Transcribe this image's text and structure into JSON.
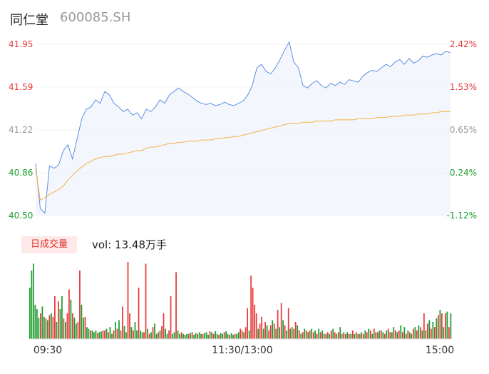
{
  "header": {
    "name": "同仁堂",
    "code": "600085.SH"
  },
  "volume_panel": {
    "tab_label": "日成交量",
    "vol_text": "vol: 13.48万手"
  },
  "colors": {
    "up": "#e8393a",
    "down": "#1a9e2c",
    "price_line": "#5b8ee0",
    "avg_line": "#f5b041",
    "neutral": "#999999"
  },
  "chart_data": [
    {
      "type": "line",
      "title": "",
      "y_left_ticks": [
        "41.95",
        "41.59",
        "41.22",
        "40.86",
        "40.50"
      ],
      "y_right_ticks": [
        "2.42%",
        "1.53%",
        "0.65%",
        "-0.24%",
        "-1.12%"
      ],
      "ylim": [
        40.5,
        41.95
      ],
      "x_tick_labels": [
        "09:30",
        "11:30/13:00",
        "15:00"
      ],
      "series": [
        {
          "values": [
            40.94,
            40.56,
            40.52,
            40.92,
            40.9,
            40.93,
            41.05,
            41.1,
            40.98,
            41.15,
            41.32,
            41.4,
            41.42,
            41.48,
            41.45,
            41.55,
            41.52,
            41.45,
            41.42,
            41.38,
            41.4,
            41.35,
            41.37,
            41.32,
            41.4,
            41.38,
            41.42,
            41.48,
            41.45,
            41.52,
            41.55,
            41.58,
            41.55,
            41.53,
            41.5,
            41.47,
            41.45,
            41.44,
            41.45,
            41.43,
            41.44,
            41.46,
            41.44,
            41.43,
            41.45,
            41.47,
            41.52,
            41.6,
            41.75,
            41.78,
            41.72,
            41.7,
            41.75,
            41.82,
            41.9,
            41.97,
            41.8,
            41.75,
            41.6,
            41.58,
            41.62,
            41.64,
            41.6,
            41.58,
            41.62,
            41.6,
            41.63,
            41.61,
            41.65,
            41.64,
            41.63,
            41.68,
            41.71,
            41.73,
            41.72,
            41.75,
            41.78,
            41.76,
            41.8,
            41.82,
            41.78,
            41.83,
            41.79,
            41.81,
            41.85,
            41.84,
            41.86,
            41.87,
            41.86,
            41.89,
            41.88
          ]
        },
        {
          "values": [
            40.9,
            40.63,
            40.65,
            40.68,
            40.7,
            40.72,
            40.75,
            40.8,
            40.84,
            40.88,
            40.91,
            40.94,
            40.96,
            40.98,
            40.99,
            41.0,
            41.0,
            41.01,
            41.02,
            41.02,
            41.03,
            41.04,
            41.05,
            41.05,
            41.07,
            41.08,
            41.08,
            41.09,
            41.1,
            41.11,
            41.11,
            41.12,
            41.12,
            41.13,
            41.13,
            41.13,
            41.14,
            41.14,
            41.14,
            41.15,
            41.15,
            41.16,
            41.16,
            41.17,
            41.17,
            41.18,
            41.19,
            41.2,
            41.21,
            41.22,
            41.23,
            41.24,
            41.25,
            41.26,
            41.27,
            41.28,
            41.28,
            41.28,
            41.29,
            41.29,
            41.29,
            41.3,
            41.3,
            41.3,
            41.3,
            41.31,
            41.31,
            41.31,
            41.31,
            41.31,
            41.32,
            41.32,
            41.32,
            41.32,
            41.33,
            41.33,
            41.33,
            41.34,
            41.34,
            41.34,
            41.35,
            41.35,
            41.35,
            41.36,
            41.36,
            41.36,
            41.37,
            41.37,
            41.38,
            41.38,
            41.38
          ]
        }
      ]
    },
    {
      "type": "bar",
      "title": "",
      "values": [
        60,
        80,
        88,
        40,
        35,
        25,
        30,
        38,
        26,
        24,
        22,
        28,
        30,
        26,
        50,
        20,
        44,
        35,
        50,
        24,
        20,
        30,
        58,
        46,
        30,
        25,
        18,
        20,
        80,
        40,
        25,
        26,
        14,
        12,
        10,
        10,
        8,
        10,
        7,
        8,
        9,
        10,
        10,
        12,
        8,
        14,
        6,
        10,
        20,
        12,
        22,
        10,
        38,
        15,
        8,
        90,
        30,
        14,
        10,
        20,
        10,
        60,
        10,
        8,
        8,
        88,
        12,
        6,
        8,
        14,
        18,
        6,
        8,
        10,
        15,
        30,
        12,
        6,
        10,
        50,
        6,
        8,
        78,
        10,
        6,
        8,
        6,
        5,
        6,
        6,
        7,
        8,
        5,
        7,
        6,
        8,
        6,
        6,
        7,
        8,
        5,
        9,
        8,
        6,
        9,
        6,
        5,
        7,
        6,
        8,
        9,
        6,
        5,
        7,
        5,
        6,
        6,
        8,
        12,
        10,
        8,
        14,
        36,
        10,
        74,
        60,
        40,
        30,
        12,
        18,
        26,
        12,
        20,
        16,
        10,
        16,
        22,
        18,
        12,
        34,
        14,
        42,
        22,
        16,
        10,
        36,
        12,
        14,
        12,
        20,
        16,
        10,
        6,
        8,
        12,
        10,
        8,
        10,
        12,
        8,
        10,
        6,
        12,
        8,
        10,
        6,
        6,
        8,
        6,
        10,
        12,
        8,
        6,
        8,
        14,
        6,
        8,
        6,
        8,
        6,
        6,
        10,
        6,
        8,
        6,
        6,
        8,
        6,
        10,
        8,
        12,
        10,
        6,
        12,
        8,
        8,
        10,
        10,
        8,
        6,
        10,
        12,
        8,
        8,
        14,
        10,
        8,
        10,
        16,
        8,
        14,
        6,
        10,
        8,
        6,
        12,
        14,
        10,
        16,
        14,
        10,
        30,
        10,
        18,
        22,
        12,
        20,
        14,
        24,
        28,
        34,
        30,
        14,
        30,
        32,
        14,
        30
      ],
      "colors": [
        "down",
        "down",
        "down",
        "down",
        "down",
        "down",
        "up",
        "down",
        "down",
        "up",
        "down",
        "up",
        "down",
        "up",
        "up",
        "down",
        "up",
        "down",
        "down",
        "up",
        "down",
        "up",
        "up",
        "down",
        "up",
        "down",
        "down",
        "up",
        "up",
        "down",
        "down",
        "up",
        "down",
        "down",
        "up",
        "down",
        "down",
        "down",
        "up",
        "down",
        "down",
        "up",
        "up",
        "down",
        "up",
        "down",
        "down",
        "up",
        "down",
        "up",
        "down",
        "up",
        "up",
        "down",
        "down",
        "up",
        "up",
        "down",
        "up",
        "down",
        "down",
        "up",
        "down",
        "down",
        "up",
        "up",
        "down",
        "up",
        "down",
        "up",
        "down",
        "down",
        "up",
        "down",
        "up",
        "up",
        "down",
        "down",
        "up",
        "up",
        "down",
        "down",
        "up",
        "down",
        "down",
        "up",
        "down",
        "down",
        "down",
        "up",
        "down",
        "up",
        "down",
        "down",
        "up",
        "down",
        "down",
        "up",
        "down",
        "down",
        "down",
        "up",
        "down",
        "up",
        "down",
        "down",
        "up",
        "down",
        "down",
        "up",
        "down",
        "down",
        "up",
        "down",
        "down",
        "up",
        "down",
        "down",
        "up",
        "up",
        "down",
        "up",
        "up",
        "down",
        "up",
        "up",
        "up",
        "up",
        "down",
        "up",
        "up",
        "down",
        "up",
        "down",
        "up",
        "up",
        "down",
        "up",
        "down",
        "up",
        "down",
        "up",
        "down",
        "up",
        "down",
        "up",
        "down",
        "up",
        "down",
        "up",
        "down",
        "up",
        "down",
        "up",
        "down",
        "up",
        "down",
        "up",
        "down",
        "up",
        "down",
        "up",
        "down",
        "up",
        "down",
        "up",
        "down",
        "up",
        "down",
        "up",
        "down",
        "up",
        "down",
        "up",
        "down",
        "up",
        "down",
        "up",
        "down",
        "up",
        "down",
        "up",
        "down",
        "up",
        "down",
        "up",
        "down",
        "up",
        "down",
        "up",
        "down",
        "up",
        "down",
        "up",
        "down",
        "up",
        "down",
        "up",
        "down",
        "up",
        "down",
        "up",
        "down",
        "up",
        "down",
        "up",
        "down",
        "up",
        "down",
        "up",
        "down",
        "up",
        "down",
        "up",
        "down",
        "up",
        "down",
        "up",
        "down",
        "up",
        "down",
        "up",
        "down",
        "up",
        "down",
        "up",
        "down",
        "up",
        "down",
        "up",
        "down",
        "up",
        "down",
        "up",
        "down",
        "up",
        "down",
        "up"
      ]
    }
  ]
}
